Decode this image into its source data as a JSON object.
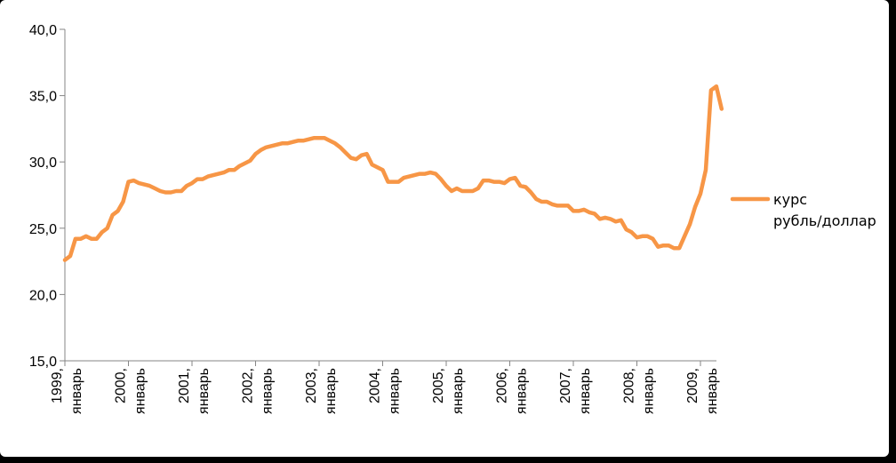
{
  "chart_data": {
    "type": "line",
    "title": "",
    "xlabel": "",
    "ylabel": "",
    "ylim": [
      15,
      40
    ],
    "y_ticks": [
      "15,0",
      "20,0",
      "25,0",
      "30,0",
      "35,0",
      "40,0"
    ],
    "y_tick_values": [
      15,
      20,
      25,
      30,
      35,
      40
    ],
    "x_tick_labels": [
      [
        "1999,",
        "январь"
      ],
      [
        "2000,",
        "январь"
      ],
      [
        "2001,",
        "январь"
      ],
      [
        "2002,",
        "январь"
      ],
      [
        "2003,",
        "январь"
      ],
      [
        "2004,",
        "январь"
      ],
      [
        "2005,",
        "январь"
      ],
      [
        "2006,",
        "январь"
      ],
      [
        "2007,",
        "январь"
      ],
      [
        "2008,",
        "январь"
      ],
      [
        "2009,",
        "январь"
      ]
    ],
    "grid": false,
    "legend_position": "right",
    "series": [
      {
        "name": "курс рубль/доллар",
        "legend_lines": [
          "курс",
          "рубль/доллар"
        ],
        "color": "#F79646",
        "values": [
          22.6,
          22.9,
          24.2,
          24.2,
          24.4,
          24.2,
          24.2,
          24.7,
          25.0,
          26.0,
          26.3,
          27.0,
          28.5,
          28.6,
          28.4,
          28.3,
          28.2,
          28.0,
          27.8,
          27.7,
          27.7,
          27.8,
          27.8,
          28.2,
          28.4,
          28.7,
          28.7,
          28.9,
          29.0,
          29.1,
          29.2,
          29.4,
          29.4,
          29.7,
          29.9,
          30.1,
          30.6,
          30.9,
          31.1,
          31.2,
          31.3,
          31.4,
          31.4,
          31.5,
          31.6,
          31.6,
          31.7,
          31.8,
          31.8,
          31.8,
          31.6,
          31.4,
          31.1,
          30.7,
          30.3,
          30.2,
          30.5,
          30.6,
          29.8,
          29.6,
          29.4,
          28.5,
          28.5,
          28.5,
          28.8,
          28.9,
          29.0,
          29.1,
          29.1,
          29.2,
          29.1,
          28.7,
          28.2,
          27.8,
          28.0,
          27.8,
          27.8,
          27.8,
          28.0,
          28.6,
          28.6,
          28.5,
          28.5,
          28.4,
          28.7,
          28.8,
          28.2,
          28.1,
          27.7,
          27.2,
          27.0,
          27.0,
          26.8,
          26.7,
          26.7,
          26.7,
          26.3,
          26.3,
          26.4,
          26.2,
          26.1,
          25.7,
          25.8,
          25.7,
          25.5,
          25.6,
          24.9,
          24.7,
          24.3,
          24.4,
          24.4,
          24.2,
          23.6,
          23.7,
          23.7,
          23.5,
          23.5,
          24.4,
          25.3,
          26.6,
          27.6,
          29.4,
          35.4,
          35.7,
          34.0
        ]
      }
    ]
  }
}
